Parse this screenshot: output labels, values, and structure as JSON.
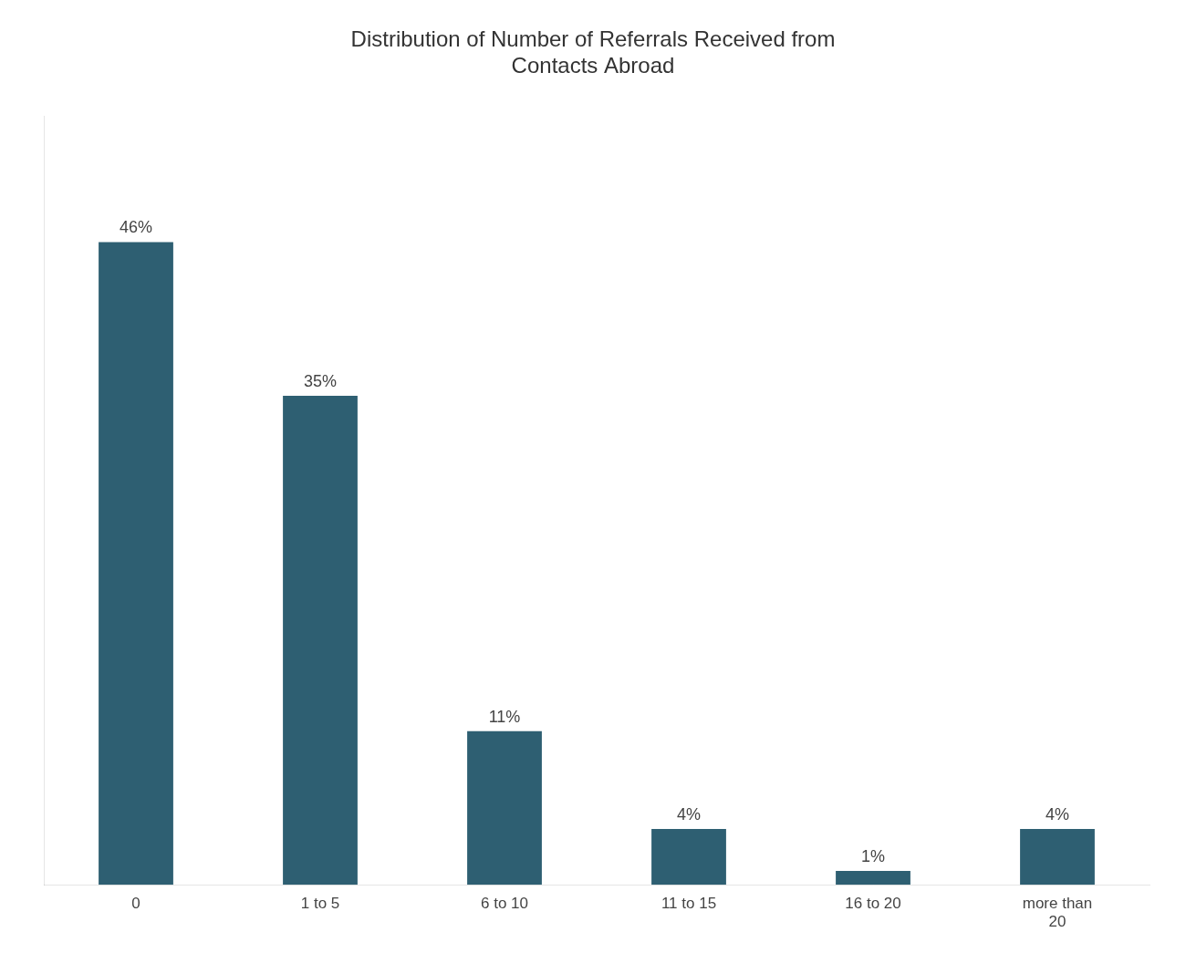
{
  "chart_data": {
    "type": "bar",
    "title": "Distribution of Number of Referrals Received from\nContacts Abroad",
    "categories": [
      "0",
      "1 to 5",
      "6 to 10",
      "11 to 15",
      "16 to 20",
      "more than\n20"
    ],
    "values": [
      46,
      35,
      11,
      4,
      1,
      4
    ],
    "value_labels": [
      "46%",
      "35%",
      "11%",
      "4%",
      "1%",
      "4%"
    ],
    "data_labels": true,
    "color": "#2e5f72",
    "ylim": [
      0,
      55
    ],
    "grid": false,
    "tick_labels": "x"
  }
}
